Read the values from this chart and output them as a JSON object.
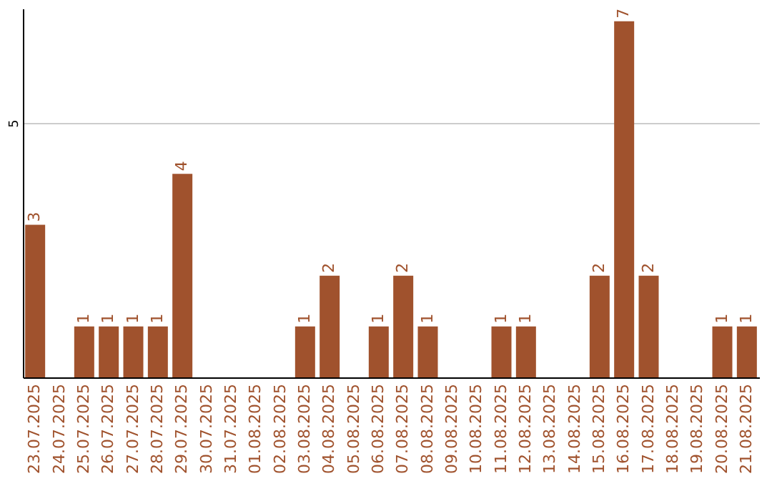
{
  "chart_data": {
    "type": "bar",
    "categories": [
      "23.07.2025",
      "24.07.2025",
      "25.07.2025",
      "26.07.2025",
      "27.07.2025",
      "28.07.2025",
      "29.07.2025",
      "30.07.2025",
      "31.07.2025",
      "01.08.2025",
      "02.08.2025",
      "03.08.2025",
      "04.08.2025",
      "05.08.2025",
      "06.08.2025",
      "07.08.2025",
      "08.08.2025",
      "09.08.2025",
      "10.08.2025",
      "11.08.2025",
      "12.08.2025",
      "13.08.2025",
      "14.08.2025",
      "15.08.2025",
      "16.08.2025",
      "17.08.2025",
      "18.08.2025",
      "19.08.2025",
      "20.08.2025",
      "21.08.2025"
    ],
    "values": [
      3,
      0,
      1,
      1,
      1,
      1,
      4,
      0,
      0,
      0,
      0,
      1,
      2,
      0,
      1,
      2,
      1,
      0,
      0,
      1,
      1,
      0,
      0,
      2,
      7,
      2,
      0,
      0,
      1,
      1
    ],
    "value_labels": [
      "3",
      null,
      "1",
      "1",
      "1",
      "1",
      "4",
      null,
      null,
      null,
      null,
      "1",
      "2",
      null,
      "1",
      "2",
      "1",
      null,
      null,
      "1",
      "1",
      null,
      null,
      "2",
      "7",
      "2",
      null,
      null,
      "1",
      "1"
    ],
    "color": "#a0522d",
    "ylim": [
      0,
      7.25
    ],
    "yticks": [
      5
    ],
    "grid": "y"
  }
}
